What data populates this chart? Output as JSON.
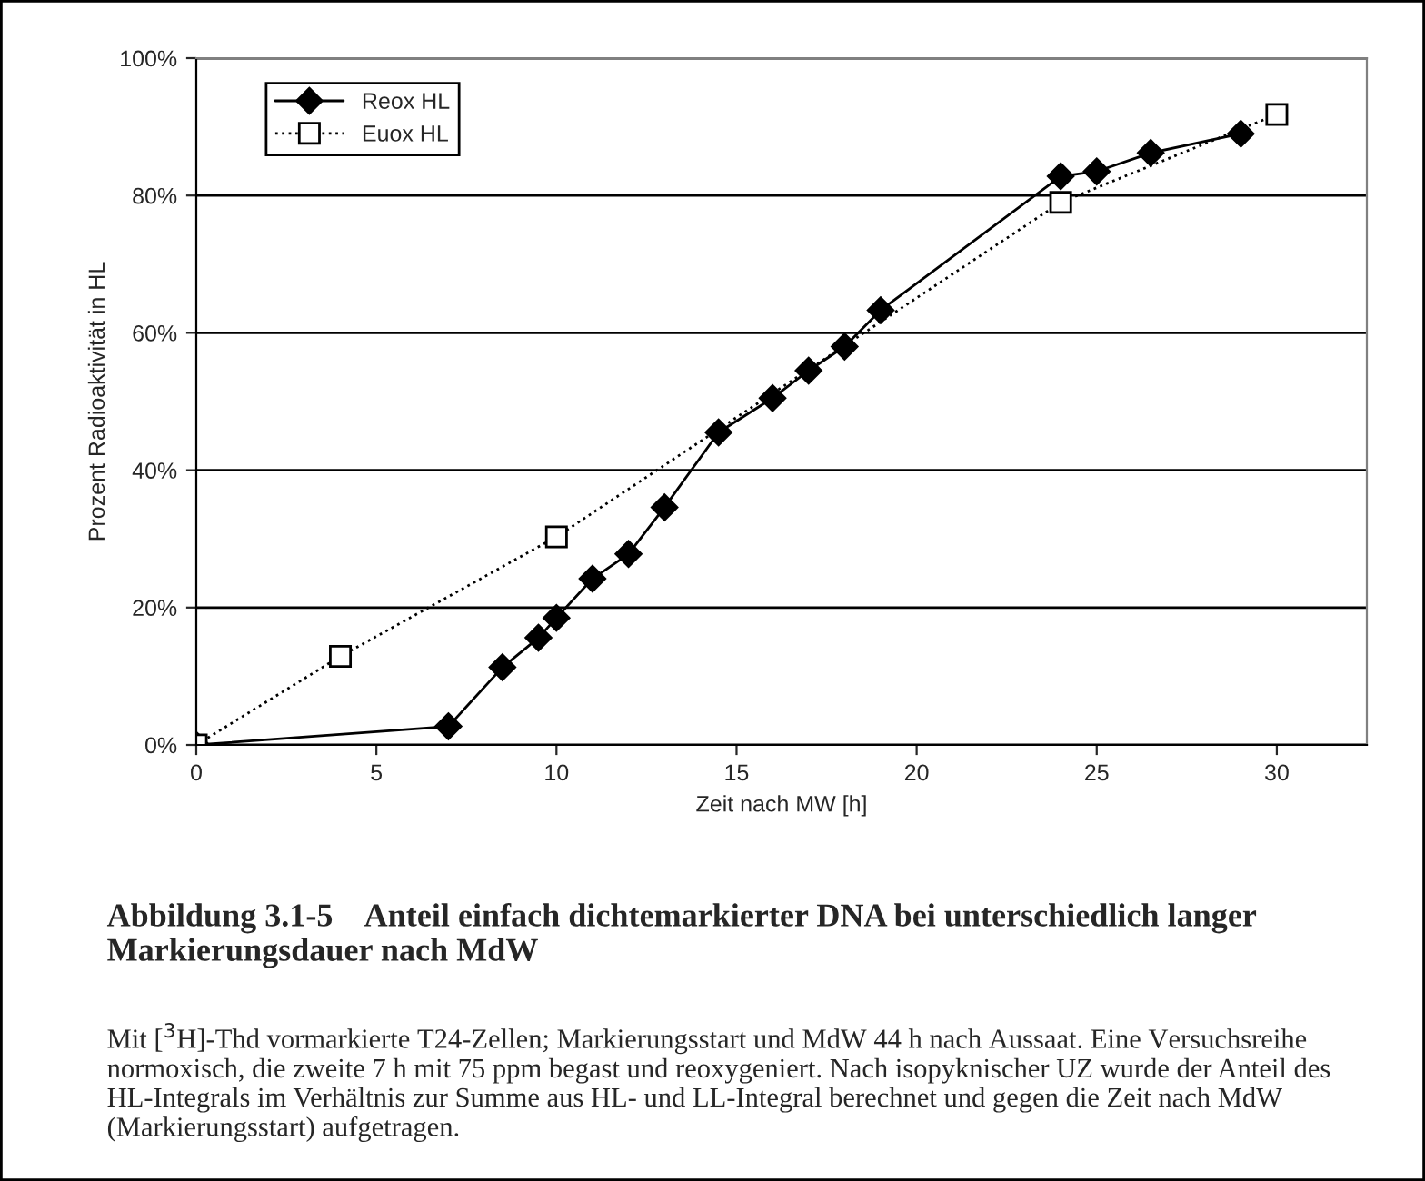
{
  "chart_data": {
    "type": "line",
    "title": "Abbildung 3.1-5    Anteil einfach dichtemarkierter DNA bei unterschiedlich langer Markierungsdauer nach MdW",
    "xlabel": "Zeit nach MW [h]",
    "ylabel": "Prozent Radioaktivität in HL",
    "annotations": [
      "Mit [$^{3}$H]-Thd vormarkierte T24-Zellen; Markierungsstart und MdW 44 h nach Aussaat. Eine Versuchsreihe normoxisch, die zweite 7 h mit 75 ppm begast und reoxygeniert. Nach isopyknischer UZ wurde der Anteil des HL-Integrals im Verhältnis zur Summe aus HL- und LL-Integral berechnet und gegen die Zeit nach MdW (Markierungsstart) aufgetragen."
    ],
    "series": [
      {
        "name": "Reox HL",
        "color": "#000000",
        "marker": "diamond",
        "line_style": "solid",
        "x": [
          0,
          7,
          8.5,
          9.5,
          10,
          11,
          12,
          13,
          14.5,
          16,
          17,
          18,
          19,
          24,
          25,
          26.5,
          29
        ],
        "values": [
          0,
          2.7,
          11.3,
          15.6,
          18.5,
          24.2,
          27.8,
          34.6,
          45.5,
          50.5,
          54.5,
          58,
          63.3,
          82.8,
          83.5,
          86.2,
          89
        ]
      },
      {
        "name": "Euox HL",
        "color": "#000000",
        "marker": "square",
        "line_style": "dotted",
        "x": [
          0,
          4,
          10,
          24,
          30
        ],
        "values": [
          0,
          12.9,
          30.3,
          79,
          91.8
        ]
      }
    ],
    "xlim": [
      0,
      32.5
    ],
    "xticks": [
      0,
      5,
      10,
      15,
      20,
      25,
      30
    ],
    "ylim": [
      0,
      100
    ],
    "yticks": [
      {
        "value": 0,
        "label": "0%"
      },
      {
        "value": 20,
        "label": "20%"
      },
      {
        "value": 40,
        "label": "40%"
      },
      {
        "value": 60,
        "label": "60%"
      },
      {
        "value": 80,
        "label": "80%"
      },
      {
        "value": 100,
        "label": "100%"
      }
    ],
    "grid": "y",
    "legend": "top left"
  }
}
